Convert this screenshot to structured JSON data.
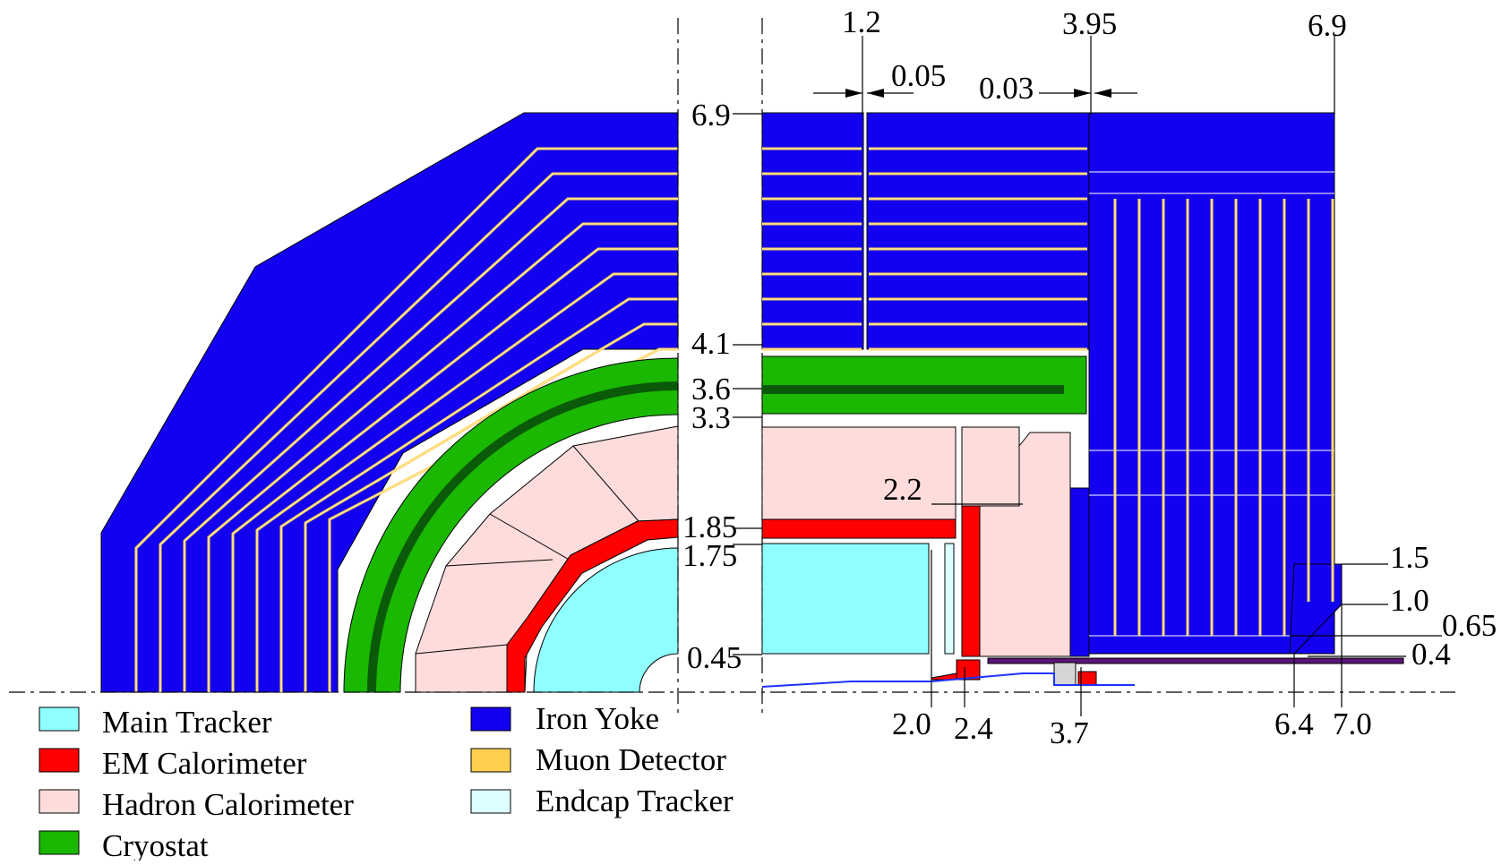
{
  "colors": {
    "main_tracker": "#8fffff",
    "em_calorimeter": "#ff0000",
    "hadron_calorimeter": "#ffdcdc",
    "cryostat": "#1ab800",
    "cryostat_coil": "#0a5a0a",
    "iron_yoke": "#1400f0",
    "muon_detector": "#ffd050",
    "endcap_tracker": "#dcffff",
    "beampipe": "#1e32ff",
    "endcap_plug": "#5a1478"
  },
  "legend": [
    {
      "key": "main_tracker",
      "label": "Main Tracker"
    },
    {
      "key": "em_calorimeter",
      "label": "EM Calorimeter"
    },
    {
      "key": "hadron_calorimeter",
      "label": "Hadron Calorimeter"
    },
    {
      "key": "cryostat",
      "label": "Cryostat"
    },
    {
      "key": "iron_yoke",
      "label": "Iron Yoke"
    },
    {
      "key": "muon_detector",
      "label": "Muon Detector"
    },
    {
      "key": "endcap_tracker",
      "label": "Endcap Tracker"
    }
  ],
  "dimensions": {
    "top_1_2": "1.2",
    "top_0_05": "0.05",
    "top_3_95": "3.95",
    "top_0_03": "0.03",
    "top_6_9": "6.9",
    "r_6_9": "6.9",
    "r_4_1": "4.1",
    "r_3_6": "3.6",
    "r_3_3": "3.3",
    "r_2_2": "2.2",
    "r_1_85": "1.85",
    "r_1_75": "1.75",
    "r_0_45": "0.45",
    "r_1_5": "1.5",
    "r_1_0": "1.0",
    "r_0_65": "0.65",
    "r_0_4": "0.4",
    "z_2_0": "2.0",
    "z_2_4": "2.4",
    "z_3_7": "3.7",
    "z_6_4": "6.4",
    "z_7_0": "7.0"
  }
}
